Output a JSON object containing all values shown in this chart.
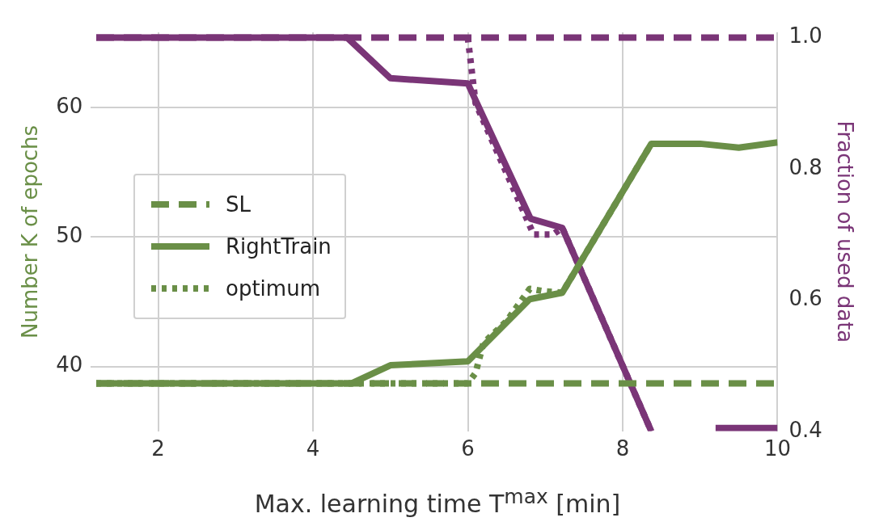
{
  "chart_data": {
    "type": "line",
    "xlabel": "Max. learning time T$^{max}$ [min]",
    "ylabel": "Number K of epochs",
    "y2label": "Fraction of used data",
    "xlim": [
      1.13,
      10
    ],
    "xticks": [
      2,
      4,
      6,
      8,
      10
    ],
    "ylim": [
      35,
      65.8
    ],
    "yticks": [
      40,
      50,
      60
    ],
    "y2lim": [
      0.4,
      1.008
    ],
    "y2ticks": [
      0.4,
      0.6,
      0.8,
      {
        "value": 1,
        "label": "1.0"
      }
    ],
    "grid": true,
    "legend": "left",
    "marker": "none",
    "series": [
      {
        "name": "SL",
        "color": "#6a8f47",
        "line_style": "dashed",
        "x": [
          1.2,
          10
        ],
        "values": [
          38.7,
          38.7
        ]
      },
      {
        "name": "RightTrain",
        "color": "#6a8f47",
        "line_style": "solid",
        "x": [
          1.2,
          4.5,
          5.0,
          6.0,
          6.8,
          7.22,
          8.37,
          9.0,
          9.5,
          10
        ],
        "values": [
          38.7,
          38.7,
          40.1,
          40.4,
          45.2,
          45.7,
          57.2,
          57.2,
          56.9,
          57.3
        ]
      },
      {
        "name": "optimum",
        "color": "#6a8f47",
        "line_style": "dotted",
        "x": [
          1.2,
          6.0,
          6.1,
          6.2,
          6.5,
          6.8,
          7.0,
          7.22,
          8.37
        ],
        "values": [
          38.7,
          38.7,
          39.5,
          41.8,
          43.5,
          46.0,
          45.8,
          45.7,
          57.2
        ]
      },
      {
        "color": "#7a3577",
        "line_style": "dashed",
        "axis": "y2",
        "x": [
          1.2,
          10
        ],
        "values": [
          1.0,
          1.0
        ]
      },
      {
        "color": "#7a3577",
        "line_style": "solid",
        "axis": "y2",
        "x": [
          1.2,
          4.44,
          5.0,
          6.0,
          6.81,
          7.22,
          8.37,
          8.8,
          9.2,
          10
        ],
        "values": [
          1.0,
          1.0,
          0.938,
          0.93,
          0.724,
          0.71,
          0.4,
          null,
          0.405,
          0.405
        ]
      },
      {
        "color": "#7a3577",
        "line_style": "dotted",
        "axis": "y2",
        "x": [
          6.0,
          6.1,
          6.7,
          6.85,
          7.1,
          7.22,
          8.37
        ],
        "values": [
          1.0,
          0.9,
          0.74,
          0.7,
          0.7,
          0.71,
          0.4
        ]
      }
    ]
  }
}
